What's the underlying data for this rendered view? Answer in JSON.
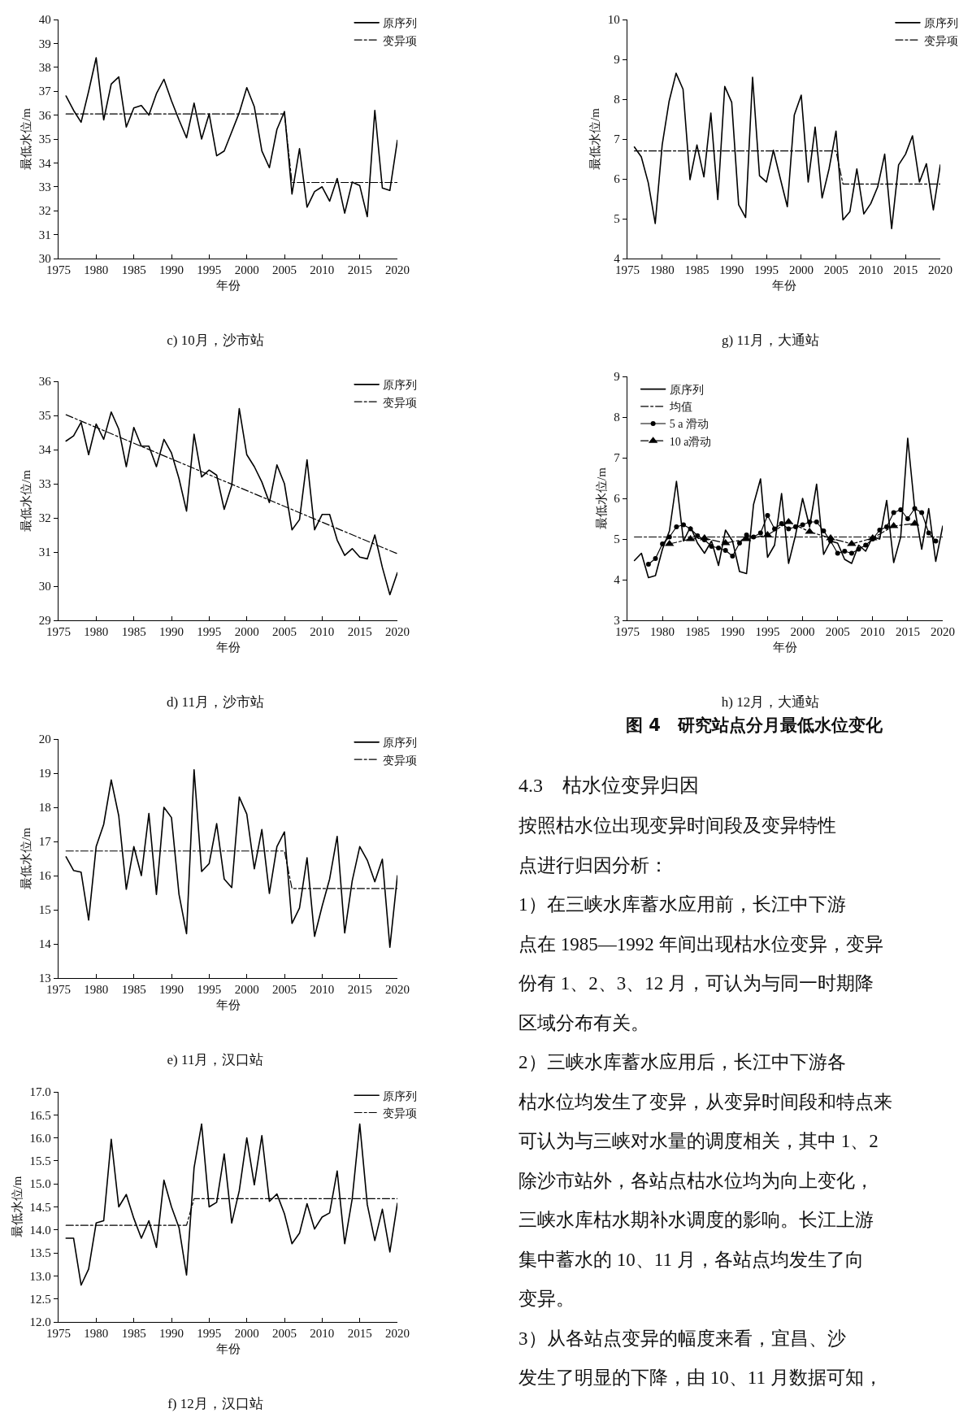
{
  "chart_data": [
    {
      "type": "line",
      "title": "c) 10月，沙市站",
      "xlabel": "年份",
      "ylabel": "最低水位/m",
      "legend": "top right",
      "xlim": [
        1975,
        2020
      ],
      "xticks": [
        1975,
        1980,
        1985,
        1990,
        1995,
        2000,
        2005,
        2010,
        2015,
        2020
      ],
      "ylim": [
        30,
        40
      ],
      "yticks": [
        30,
        31,
        32,
        33,
        34,
        35,
        36,
        37,
        38,
        39,
        40
      ],
      "x": [
        1976,
        1977,
        1978,
        1979,
        1980,
        1981,
        1982,
        1983,
        1984,
        1985,
        1986,
        1987,
        1988,
        1989,
        1990,
        1991,
        1992,
        1993,
        1994,
        1995,
        1996,
        1997,
        1998,
        1999,
        2000,
        2001,
        2002,
        2003,
        2004,
        2005,
        2006,
        2007,
        2008,
        2009,
        2010,
        2011,
        2012,
        2013,
        2014,
        2015,
        2016,
        2017,
        2018,
        2019,
        2020
      ],
      "series": [
        {
          "name": "原序列",
          "color": "#000000",
          "line_style": "solid",
          "values": [
            36.8,
            36.2,
            35.7,
            37.0,
            38.4,
            35.8,
            37.3,
            37.6,
            35.5,
            36.3,
            36.4,
            36.0,
            36.9,
            37.5,
            36.6,
            35.8,
            35.05,
            36.5,
            35.0,
            36.05,
            34.3,
            34.5,
            35.3,
            36.1,
            37.15,
            36.35,
            34.5,
            33.8,
            35.4,
            36.15,
            32.7,
            34.6,
            32.15,
            32.8,
            33.0,
            32.4,
            33.35,
            31.9,
            33.2,
            33.05,
            31.75,
            36.2,
            32.95,
            32.85,
            34.95
          ]
        },
        {
          "name": "变异项",
          "color": "#000000",
          "line_style": "dashed",
          "x": [
            1976,
            2005,
            2006,
            2020
          ],
          "values": [
            36.05,
            36.05,
            33.18,
            33.18
          ]
        }
      ]
    },
    {
      "type": "line",
      "title": "g) 11月，大通站",
      "xlabel": "年份",
      "ylabel": "最低水位/m",
      "legend": "top right",
      "xlim": [
        1975,
        2020
      ],
      "xticks": [
        1975,
        1980,
        1985,
        1990,
        1995,
        2000,
        2005,
        2010,
        2015,
        2020
      ],
      "ylim": [
        4,
        10
      ],
      "yticks": [
        4,
        5,
        6,
        7,
        8,
        9,
        10
      ],
      "x": [
        1976,
        1977,
        1978,
        1979,
        1980,
        1981,
        1982,
        1983,
        1984,
        1985,
        1986,
        1987,
        1988,
        1989,
        1990,
        1991,
        1992,
        1993,
        1994,
        1995,
        1996,
        1997,
        1998,
        1999,
        2000,
        2001,
        2002,
        2003,
        2004,
        2005,
        2006,
        2007,
        2008,
        2009,
        2010,
        2011,
        2012,
        2013,
        2014,
        2015,
        2016,
        2017,
        2018,
        2019,
        2020
      ],
      "series": [
        {
          "name": "原序列",
          "color": "#000000",
          "line_style": "solid",
          "values": [
            6.8,
            6.55,
            5.9,
            4.88,
            6.85,
            7.95,
            8.65,
            8.25,
            5.98,
            6.85,
            6.05,
            7.65,
            5.48,
            8.32,
            7.92,
            5.35,
            5.03,
            8.55,
            6.08,
            5.92,
            6.72,
            6.0,
            5.3,
            7.6,
            8.1,
            5.92,
            7.3,
            5.52,
            6.25,
            7.2,
            4.97,
            5.18,
            6.25,
            5.12,
            5.38,
            5.8,
            6.62,
            4.75,
            6.35,
            6.62,
            7.08,
            5.92,
            6.38,
            5.22,
            6.35
          ]
        },
        {
          "name": "变异项",
          "color": "#000000",
          "line_style": "dashed",
          "x": [
            1976,
            2005,
            2006,
            2020
          ],
          "values": [
            6.7,
            6.7,
            5.87,
            5.87
          ]
        }
      ]
    },
    {
      "type": "line",
      "title": "d) 11月，沙市站",
      "xlabel": "年份",
      "ylabel": "最低水位/m",
      "legend": "top right",
      "xlim": [
        1975,
        2020
      ],
      "xticks": [
        1975,
        1980,
        1985,
        1990,
        1995,
        2000,
        2005,
        2010,
        2015,
        2020
      ],
      "ylim": [
        29,
        36
      ],
      "yticks": [
        29,
        30,
        31,
        32,
        33,
        34,
        35,
        36
      ],
      "x": [
        1976,
        1977,
        1978,
        1979,
        1980,
        1981,
        1982,
        1983,
        1984,
        1985,
        1986,
        1987,
        1988,
        1989,
        1990,
        1991,
        1992,
        1993,
        1994,
        1995,
        1996,
        1997,
        1998,
        1999,
        2000,
        2001,
        2002,
        2003,
        2004,
        2005,
        2006,
        2007,
        2008,
        2009,
        2010,
        2011,
        2012,
        2013,
        2014,
        2015,
        2016,
        2017,
        2018,
        2019,
        2020
      ],
      "series": [
        {
          "name": "原序列",
          "color": "#000000",
          "line_style": "solid",
          "values": [
            34.25,
            34.4,
            34.8,
            33.85,
            34.75,
            34.3,
            35.1,
            34.6,
            33.5,
            34.65,
            34.1,
            34.1,
            33.5,
            34.3,
            33.9,
            33.15,
            32.2,
            34.45,
            33.2,
            33.4,
            33.25,
            32.25,
            32.95,
            35.2,
            33.85,
            33.5,
            33.05,
            32.45,
            33.55,
            33.0,
            31.65,
            31.95,
            33.7,
            31.65,
            32.1,
            32.1,
            31.35,
            30.9,
            31.1,
            30.85,
            30.8,
            31.5,
            30.55,
            29.75,
            30.4
          ]
        },
        {
          "name": "变异项",
          "color": "#000000",
          "line_style": "dashed",
          "x": [
            1976,
            2020
          ],
          "values": [
            35.02,
            30.95
          ]
        }
      ]
    },
    {
      "type": "line",
      "title": "h) 12月，大通站",
      "xlabel": "年份",
      "ylabel": "最低水位/m",
      "legend": "top left",
      "xlim": [
        1975,
        2020
      ],
      "xticks": [
        1975,
        1980,
        1985,
        1990,
        1995,
        2000,
        2005,
        2010,
        2015,
        2020
      ],
      "ylim": [
        3,
        9
      ],
      "yticks": [
        3,
        4,
        5,
        6,
        7,
        8,
        9
      ],
      "x": [
        1976,
        1977,
        1978,
        1979,
        1980,
        1981,
        1982,
        1983,
        1984,
        1985,
        1986,
        1987,
        1988,
        1989,
        1990,
        1991,
        1992,
        1993,
        1994,
        1995,
        1996,
        1997,
        1998,
        1999,
        2000,
        2001,
        2002,
        2003,
        2004,
        2005,
        2006,
        2007,
        2008,
        2009,
        2010,
        2011,
        2012,
        2013,
        2014,
        2015,
        2016,
        2017,
        2018,
        2019,
        2020
      ],
      "series": [
        {
          "name": "原序列",
          "color": "#000000",
          "line_style": "solid",
          "values": [
            4.47,
            4.65,
            4.05,
            4.1,
            4.75,
            5.2,
            6.42,
            4.95,
            5.3,
            4.9,
            4.65,
            4.95,
            4.35,
            5.22,
            4.95,
            4.2,
            4.15,
            5.85,
            6.48,
            4.55,
            4.85,
            6.12,
            4.4,
            5.1,
            6.0,
            5.3,
            6.35,
            4.62,
            4.95,
            4.9,
            4.5,
            4.4,
            4.85,
            4.7,
            5.05,
            5.0,
            5.95,
            4.42,
            5.05,
            7.48,
            5.75,
            4.75,
            5.75,
            4.45,
            5.32
          ]
        },
        {
          "name": "均值",
          "color": "#000000",
          "line_style": "dashed",
          "x": [
            1976,
            2020
          ],
          "values": [
            5.05,
            5.05
          ]
        },
        {
          "name": "5 a 滑动",
          "color": "#000000",
          "line_style": "solid",
          "marker": "circle",
          "x": [
            1978,
            1979,
            1980,
            1981,
            1982,
            1983,
            1984,
            1985,
            1986,
            1987,
            1988,
            1989,
            1990,
            1991,
            1992,
            1993,
            1994,
            1995,
            1996,
            1997,
            1998,
            1999,
            2000,
            2001,
            2002,
            2003,
            2004,
            2005,
            2006,
            2007,
            2008,
            2009,
            2010,
            2011,
            2012,
            2013,
            2014,
            2015,
            2016,
            2017,
            2018,
            2019
          ],
          "values": [
            4.38,
            4.52,
            4.88,
            5.05,
            5.3,
            5.35,
            5.25,
            5.08,
            4.98,
            4.82,
            4.78,
            4.72,
            4.58,
            4.9,
            5.1,
            5.05,
            5.15,
            5.58,
            5.25,
            5.38,
            5.25,
            5.3,
            5.35,
            5.42,
            5.42,
            5.2,
            4.95,
            4.65,
            4.7,
            4.65,
            4.75,
            4.85,
            5.0,
            5.22,
            5.3,
            5.65,
            5.72,
            5.5,
            5.75,
            5.65,
            5.15,
            4.95
          ]
        },
        {
          "name": "10 a滑动",
          "color": "#000000",
          "line_style": "dashed",
          "marker": "triangle",
          "x": [
            1981,
            1984,
            1986,
            1989,
            1992,
            1995,
            1998,
            2001,
            2004,
            2007,
            2010,
            2013,
            2016
          ],
          "values": [
            4.88,
            5.0,
            5.02,
            4.9,
            5.0,
            5.1,
            5.42,
            5.18,
            5.02,
            4.88,
            5.02,
            5.32,
            5.38
          ]
        }
      ]
    },
    {
      "type": "line",
      "title": "e) 11月，汉口站",
      "xlabel": "年份",
      "ylabel": "最低水位/m",
      "legend": "top right",
      "xlim": [
        1975,
        2020
      ],
      "xticks": [
        1975,
        1980,
        1985,
        1990,
        1995,
        2000,
        2005,
        2010,
        2015,
        2020
      ],
      "ylim": [
        13,
        20
      ],
      "yticks": [
        13,
        14,
        15,
        16,
        17,
        18,
        19,
        20
      ],
      "x": [
        1976,
        1977,
        1978,
        1979,
        1980,
        1981,
        1982,
        1983,
        1984,
        1985,
        1986,
        1987,
        1988,
        1989,
        1990,
        1991,
        1992,
        1993,
        1994,
        1995,
        1996,
        1997,
        1998,
        1999,
        2000,
        2001,
        2002,
        2003,
        2004,
        2005,
        2006,
        2007,
        2008,
        2009,
        2010,
        2011,
        2012,
        2013,
        2014,
        2015,
        2016,
        2017,
        2018,
        2019,
        2020
      ],
      "series": [
        {
          "name": "原序列",
          "color": "#000000",
          "line_style": "solid",
          "values": [
            16.55,
            16.15,
            16.1,
            14.7,
            16.85,
            17.5,
            18.8,
            17.75,
            15.6,
            16.85,
            16.0,
            17.82,
            15.45,
            18.0,
            17.7,
            15.45,
            14.3,
            19.1,
            16.12,
            16.35,
            17.52,
            15.9,
            15.65,
            18.3,
            17.8,
            16.2,
            17.35,
            15.48,
            16.85,
            17.28,
            14.6,
            15.05,
            16.52,
            14.22,
            15.1,
            15.9,
            17.15,
            14.32,
            15.85,
            16.85,
            16.45,
            15.82,
            16.48,
            13.9,
            16.0
          ]
        },
        {
          "name": "变异项",
          "color": "#000000",
          "line_style": "dashed",
          "x": [
            1976,
            2005,
            2006,
            2020
          ],
          "values": [
            16.72,
            16.72,
            15.62,
            15.62
          ]
        }
      ]
    },
    {
      "type": "line",
      "title": "f) 12月，汉口站",
      "xlabel": "年份",
      "ylabel": "最低水位/m",
      "legend": "top right",
      "xlim": [
        1975,
        2020
      ],
      "xticks": [
        1975,
        1980,
        1985,
        1990,
        1995,
        2000,
        2005,
        2010,
        2015,
        2020
      ],
      "ylim": [
        12,
        17
      ],
      "yticks": [
        {
          "value": 12,
          "label": "12.0"
        },
        {
          "value": 12.5,
          "label": "12.5"
        },
        {
          "value": 13,
          "label": "13.0"
        },
        {
          "value": 13.5,
          "label": "13.5"
        },
        {
          "value": 14,
          "label": "14.0"
        },
        {
          "value": 14.5,
          "label": "14.5"
        },
        {
          "value": 15,
          "label": "15.0"
        },
        {
          "value": 15.5,
          "label": "15.5"
        },
        {
          "value": 16,
          "label": "16.0"
        },
        {
          "value": 16.5,
          "label": "16.5"
        },
        {
          "value": 17,
          "label": "17.0"
        }
      ],
      "x": [
        1976,
        1977,
        1978,
        1979,
        1980,
        1981,
        1982,
        1983,
        1984,
        1985,
        1986,
        1987,
        1988,
        1989,
        1990,
        1991,
        1992,
        1993,
        1994,
        1995,
        1996,
        1997,
        1998,
        1999,
        2000,
        2001,
        2002,
        2003,
        2004,
        2005,
        2006,
        2007,
        2008,
        2009,
        2010,
        2011,
        2012,
        2013,
        2014,
        2015,
        2016,
        2017,
        2018,
        2019,
        2020
      ],
      "series": [
        {
          "name": "原序列",
          "color": "#000000",
          "line_style": "solid",
          "values": [
            13.82,
            13.82,
            12.8,
            13.15,
            14.15,
            14.2,
            15.97,
            14.5,
            14.77,
            14.25,
            13.82,
            14.2,
            13.62,
            15.08,
            14.5,
            14.05,
            13.02,
            15.35,
            16.3,
            14.5,
            14.6,
            15.65,
            14.15,
            14.85,
            16.0,
            14.98,
            16.05,
            14.62,
            14.78,
            14.35,
            13.7,
            13.93,
            14.57,
            14.02,
            14.28,
            14.37,
            15.28,
            13.7,
            14.68,
            16.3,
            14.55,
            13.77,
            14.45,
            13.52,
            14.58
          ]
        },
        {
          "name": "变异项",
          "color": "#000000",
          "line_style": "dashed",
          "x": [
            1976,
            1992,
            1993,
            2020
          ],
          "values": [
            14.1,
            14.1,
            14.68,
            14.68
          ]
        }
      ]
    },
    {
      "type": "other",
      "title": "图 4　研究站点分月最低水位变化",
      "subtitle": "4.3　枯水位变异归因",
      "annotations": [
        "按照枯水位出现变异时间段及变异特性",
        "点进行归因分析：",
        "1）在三峡水库蓄水应用前，长江中下游",
        "点在 1985—1992 年间出现枯水位变异，变异",
        "份有 1、2、3、12 月，可认为与同一时期降",
        "区域分布有关。",
        "2）三峡水库蓄水应用后，长江中下游各",
        "枯水位均发生了变异，从变异时间段和特点来",
        "可认为与三峡对水量的调度相关，其中 1、2",
        "除沙市站外，各站点枯水位均为向上变化，",
        "三峡水库枯水期补水调度的影响。长江上游",
        "集中蓄水的 10、11 月，各站点均发生了向",
        "变异。",
        "3）从各站点变异的幅度来看，宜昌、沙",
        "发生了明显的下降，由 10、11 月数据可知，"
      ]
    }
  ]
}
